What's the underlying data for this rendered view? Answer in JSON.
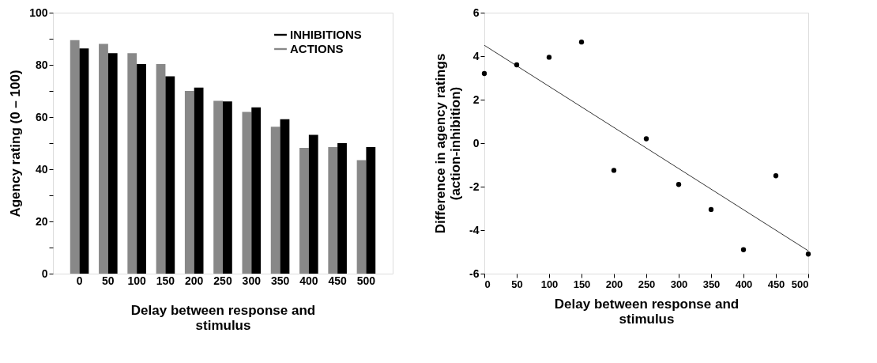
{
  "chart_data": [
    {
      "type": "bar",
      "xlabel": "Delay between response and\nstimulus",
      "ylabel": "Agency rating (0 – 100)",
      "categories": [
        "0",
        "50",
        "100",
        "150",
        "200",
        "250",
        "300",
        "350",
        "400",
        "450",
        "500"
      ],
      "series": [
        {
          "name": "ACTIONS",
          "color": "#888888",
          "values": [
            89.5,
            88,
            84.5,
            80.3,
            70,
            66.2,
            62,
            56.3,
            48.2,
            48.5,
            43.5
          ]
        },
        {
          "name": "INHIBITIONS",
          "color": "#000000",
          "values": [
            86.3,
            84.5,
            80.3,
            75.6,
            71.3,
            66,
            63.7,
            59.2,
            53.2,
            50,
            48.5
          ]
        }
      ],
      "ylim": [
        0,
        100
      ],
      "yticks": [
        0,
        {
          "value": 10,
          "label": null
        },
        20,
        {
          "value": 30,
          "label": null
        },
        40,
        {
          "value": 50,
          "label": null
        },
        60,
        {
          "value": 70,
          "label": null
        },
        80,
        {
          "value": 90,
          "label": null
        },
        100
      ],
      "legend": "top right",
      "grid": false
    },
    {
      "type": "scatter",
      "xlabel": "Delay between response and\nstimulus",
      "ylabel": "Difference in agency ratings\n(action-inhibition)",
      "x": [
        0,
        50,
        100,
        150,
        200,
        250,
        300,
        350,
        400,
        450,
        500
      ],
      "series": [
        {
          "type": "scatter",
          "color": "#000000",
          "marker": "circle",
          "values": [
            3.2,
            3.6,
            3.95,
            4.65,
            -1.25,
            0.2,
            -1.9,
            -3.05,
            -4.9,
            -1.5,
            -5.1
          ]
        },
        {
          "type": "line",
          "color": "#000000",
          "x": [
            0,
            500
          ],
          "values": [
            4.5,
            -4.95
          ]
        }
      ],
      "xlim": [
        0,
        500
      ],
      "xticks": [
        0,
        50,
        100,
        150,
        200,
        250,
        300,
        350,
        400,
        450,
        500
      ],
      "ylim": [
        -6,
        6
      ],
      "yticks": [
        -6,
        -4,
        -2,
        0,
        2,
        4,
        6
      ],
      "grid": false
    }
  ]
}
